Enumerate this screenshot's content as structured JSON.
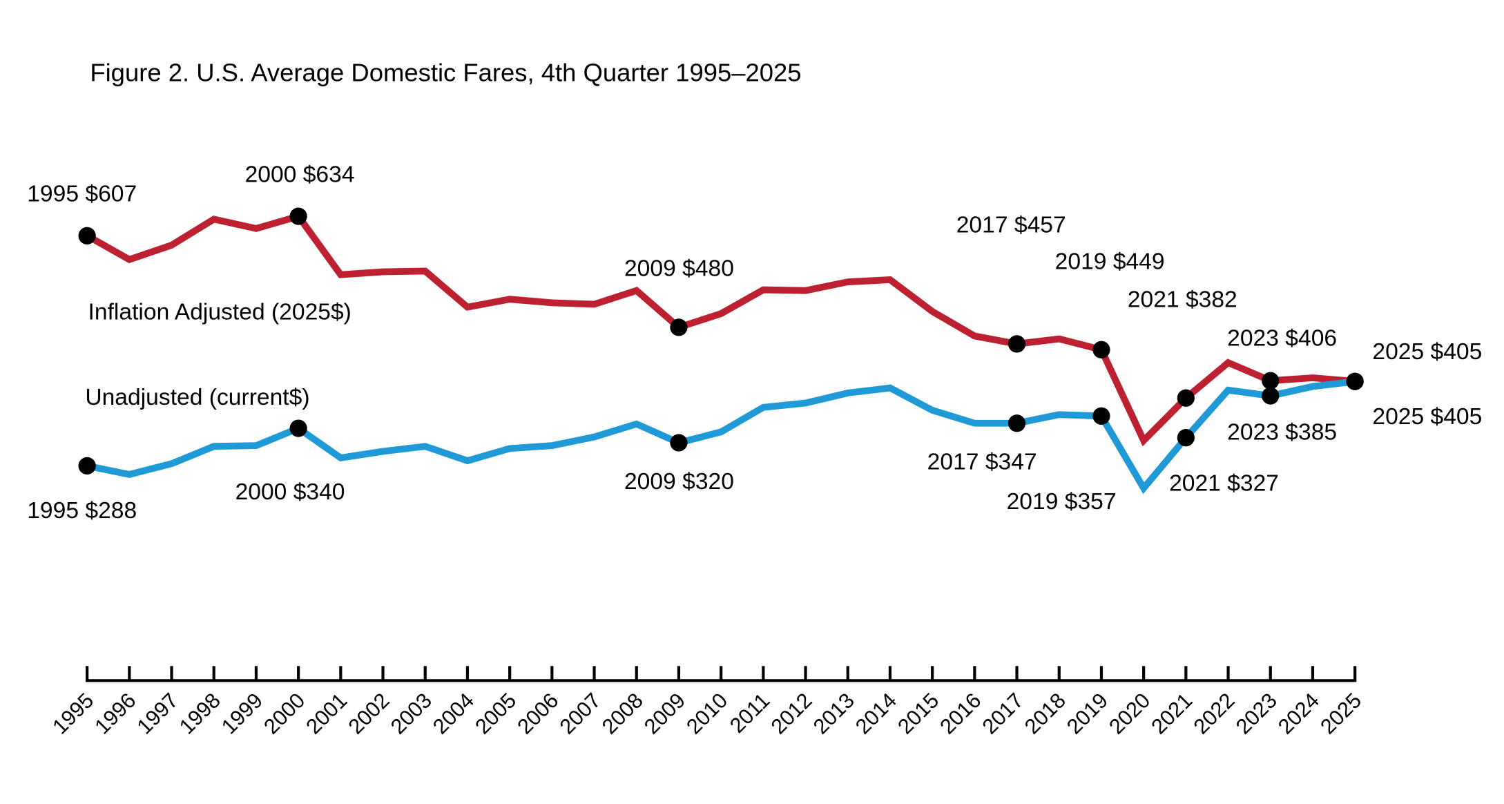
{
  "chart_data": {
    "type": "line",
    "title": "Figure 2. U.S. Average Domestic Fares, 4th Quarter 1995–2025",
    "xlabel": "",
    "ylabel": "",
    "ylim": [
      0,
      700
    ],
    "grid": false,
    "y_axis_shown": false,
    "x": [
      1995,
      1996,
      1997,
      1998,
      1999,
      2000,
      2001,
      2002,
      2003,
      2004,
      2005,
      2006,
      2007,
      2008,
      2009,
      2010,
      2011,
      2012,
      2013,
      2014,
      2015,
      2016,
      2017,
      2018,
      2019,
      2020,
      2021,
      2022,
      2023,
      2024,
      2025
    ],
    "tick_labels": [
      "1995",
      "1996",
      "1997",
      "1998",
      "1999",
      "2000",
      "2001",
      "2002",
      "2003",
      "2004",
      "2005",
      "2006",
      "2007",
      "2008",
      "2009",
      "2010",
      "2011",
      "2012",
      "2013",
      "2014",
      "2015",
      "2016",
      "2017",
      "2018",
      "2019",
      "2020",
      "2021",
      "2022",
      "2023",
      "2024",
      "2025"
    ],
    "series": [
      {
        "name": "Inflation Adjusted (2025$)",
        "color": "#BC2031",
        "values": [
          607,
          574,
          594,
          630,
          617,
          634,
          553,
          557,
          558,
          508,
          519,
          514,
          512,
          531,
          480,
          499,
          532,
          531,
          543,
          546,
          502,
          468,
          457,
          464,
          449,
          323,
          382,
          431,
          406,
          410,
          405
        ],
        "annotations": [
          {
            "year": 1995,
            "label": "1995 $607"
          },
          {
            "year": 2000,
            "label": "2000 $634"
          },
          {
            "year": 2009,
            "label": "2009 $480"
          },
          {
            "year": 2017,
            "label": "2017 $457"
          },
          {
            "year": 2019,
            "label": "2019 $449"
          },
          {
            "year": 2021,
            "label": "2021 $382"
          },
          {
            "year": 2023,
            "label": "2023 $406"
          },
          {
            "year": 2025,
            "label": "2025 $405"
          }
        ]
      },
      {
        "name": "Unadjusted (current$)",
        "color": "#1F9AD6",
        "values": [
          288,
          276,
          291,
          315,
          316,
          340,
          299,
          308,
          315,
          295,
          312,
          316,
          328,
          346,
          320,
          335,
          369,
          375,
          389,
          396,
          365,
          347,
          347,
          359,
          357,
          257,
          327,
          393,
          385,
          398,
          405
        ],
        "annotations": [
          {
            "year": 1995,
            "label": "1995 $288"
          },
          {
            "year": 2000,
            "label": "2000 $340"
          },
          {
            "year": 2009,
            "label": "2009 $320"
          },
          {
            "year": 2017,
            "label": "2017 $347"
          },
          {
            "year": 2019,
            "label": "2019 $357"
          },
          {
            "year": 2021,
            "label": "2021 $327"
          },
          {
            "year": 2023,
            "label": "2023 $385"
          },
          {
            "year": 2025,
            "label": "2025 $405"
          }
        ]
      }
    ]
  }
}
